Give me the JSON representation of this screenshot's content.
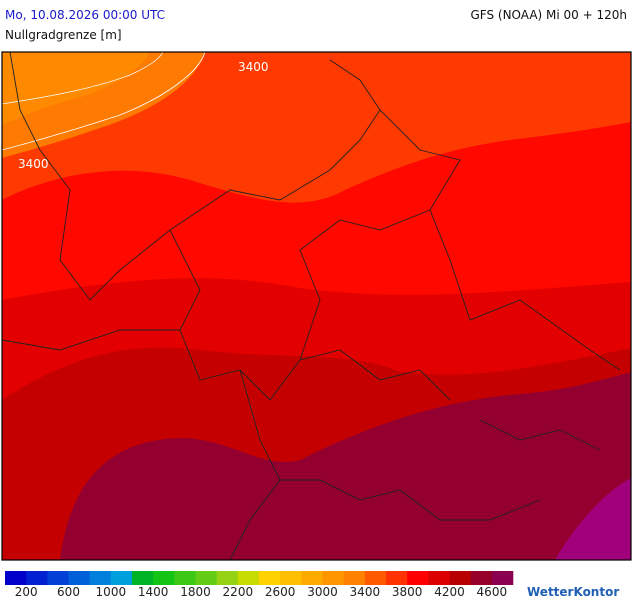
{
  "header": {
    "left": "Mo, 10.08.2026 00:00 UTC",
    "right": "GFS (NOAA) Mi 00 + 120h",
    "subtitle": "Nullgradgrenze [m]"
  },
  "contour_labels": [
    "3400",
    "3400"
  ],
  "legend": {
    "colors": [
      "#0000c8",
      "#0020d2",
      "#0040d6",
      "#0060da",
      "#0080dc",
      "#00a0dc",
      "#00b428",
      "#14c414",
      "#3cc814",
      "#64cc14",
      "#96d214",
      "#c8dc00",
      "#ffd200",
      "#ffbe00",
      "#ffaa00",
      "#ff9600",
      "#ff8200",
      "#ff5a00",
      "#ff3200",
      "#ff0000",
      "#dc0000",
      "#b90000",
      "#960028",
      "#8c0050"
    ],
    "labels": [
      200,
      600,
      1000,
      1400,
      1800,
      2200,
      2600,
      3000,
      3400,
      3800,
      4200,
      4600
    ]
  },
  "logo": "WetterKontor"
}
